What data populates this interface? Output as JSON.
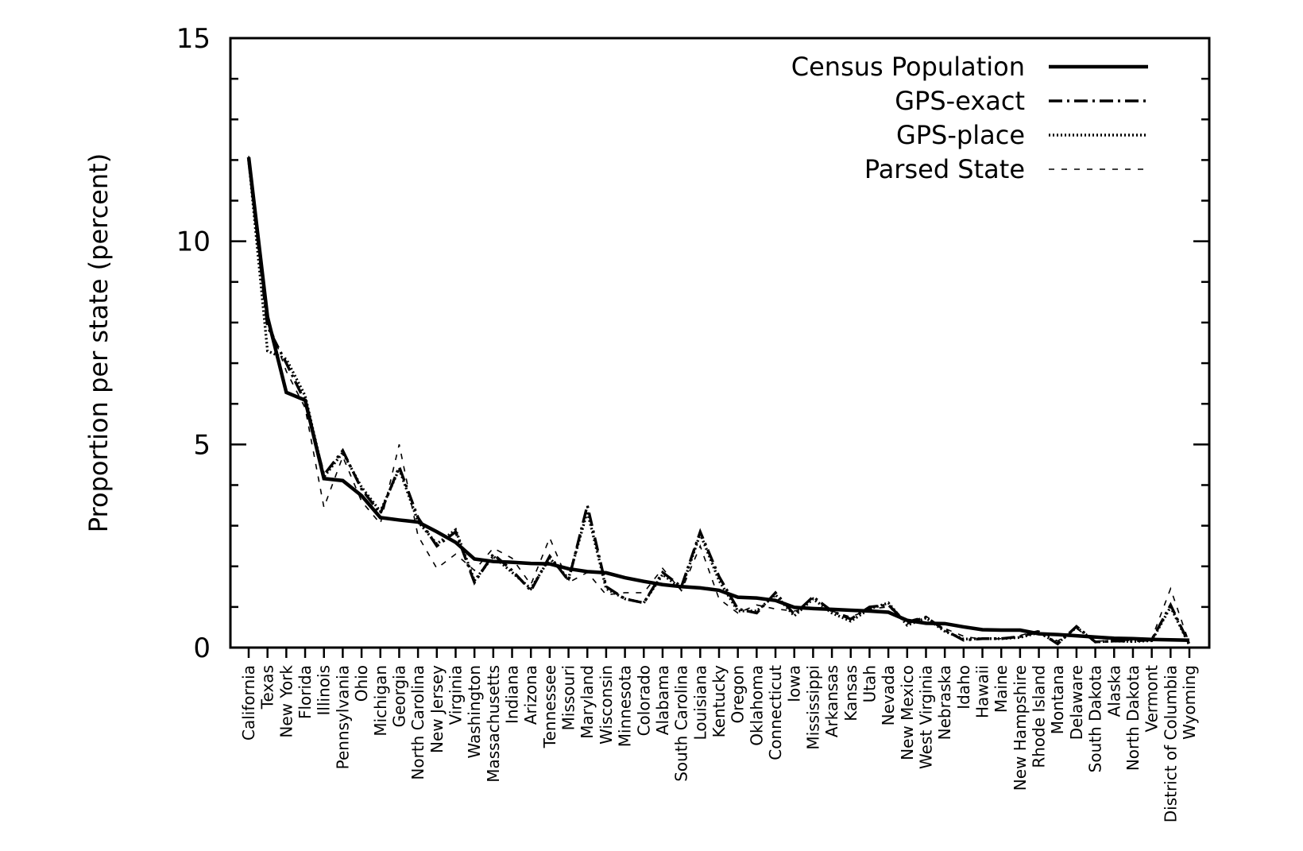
{
  "figure": {
    "background": "#ffffff",
    "line_color": "#000000",
    "ylabel": "Proportion per state (percent)",
    "y_tick_labels": [
      "0",
      "5",
      "10",
      "15"
    ]
  },
  "chart_data": {
    "type": "line",
    "title": "",
    "xlabel": "",
    "ylabel": "Proportion per state (percent)",
    "ylim": [
      0,
      15
    ],
    "y_major_ticks": [
      0,
      5,
      10,
      15
    ],
    "y_minor_tick_step": 1,
    "grid": false,
    "legend_position": "top-right-inside",
    "categories": [
      "California",
      "Texas",
      "New York",
      "Florida",
      "Illinois",
      "Pennsylvania",
      "Ohio",
      "Michigan",
      "Georgia",
      "North Carolina",
      "New Jersey",
      "Virginia",
      "Washington",
      "Massachusetts",
      "Indiana",
      "Arizona",
      "Tennessee",
      "Missouri",
      "Maryland",
      "Wisconsin",
      "Minnesota",
      "Colorado",
      "Alabama",
      "South Carolina",
      "Louisiana",
      "Kentucky",
      "Oregon",
      "Oklahoma",
      "Connecticut",
      "Iowa",
      "Mississippi",
      "Arkansas",
      "Kansas",
      "Utah",
      "Nevada",
      "New Mexico",
      "West Virginia",
      "Nebraska",
      "Idaho",
      "Hawaii",
      "Maine",
      "New Hampshire",
      "Rhode Island",
      "Montana",
      "Delaware",
      "South Dakota",
      "Alaska",
      "North Dakota",
      "Vermont",
      "District of Columbia",
      "Wyoming"
    ],
    "series": [
      {
        "name": "Census Population",
        "style": "solid",
        "color": "#000000",
        "values": [
          12.07,
          8.14,
          6.28,
          6.09,
          4.16,
          4.11,
          3.74,
          3.2,
          3.14,
          3.09,
          2.85,
          2.59,
          2.18,
          2.12,
          2.1,
          2.07,
          2.06,
          1.94,
          1.87,
          1.84,
          1.72,
          1.63,
          1.55,
          1.5,
          1.47,
          1.41,
          1.24,
          1.22,
          1.16,
          0.99,
          0.96,
          0.94,
          0.92,
          0.9,
          0.87,
          0.67,
          0.6,
          0.59,
          0.51,
          0.44,
          0.43,
          0.43,
          0.34,
          0.32,
          0.29,
          0.26,
          0.23,
          0.22,
          0.2,
          0.19,
          0.18
        ]
      },
      {
        "name": "GPS-exact",
        "style": "dash-dot",
        "color": "#000000",
        "values": [
          12.0,
          7.9,
          7.0,
          6.05,
          4.25,
          4.85,
          3.9,
          3.3,
          4.45,
          3.2,
          2.5,
          2.85,
          1.6,
          2.3,
          1.9,
          1.4,
          2.25,
          1.65,
          3.5,
          1.5,
          1.2,
          1.1,
          1.85,
          1.5,
          2.85,
          1.75,
          0.95,
          0.85,
          1.35,
          0.82,
          1.25,
          0.9,
          0.7,
          1.0,
          1.05,
          0.6,
          0.75,
          0.43,
          0.18,
          0.22,
          0.22,
          0.27,
          0.39,
          0.09,
          0.52,
          0.14,
          0.16,
          0.16,
          0.19,
          1.05,
          0.08
        ]
      },
      {
        "name": "GPS-place",
        "style": "dotted",
        "color": "#000000",
        "values": [
          12.0,
          7.3,
          7.1,
          6.2,
          4.2,
          4.8,
          3.95,
          3.35,
          4.4,
          3.1,
          2.55,
          2.9,
          1.65,
          2.25,
          1.85,
          1.45,
          2.2,
          1.7,
          3.35,
          1.45,
          1.2,
          1.1,
          1.8,
          1.45,
          2.8,
          1.65,
          0.9,
          0.9,
          1.3,
          0.78,
          1.2,
          0.85,
          0.65,
          0.95,
          1.1,
          0.55,
          0.73,
          0.4,
          0.21,
          0.22,
          0.22,
          0.25,
          0.37,
          0.11,
          0.5,
          0.14,
          0.16,
          0.15,
          0.17,
          1.0,
          0.06
        ]
      },
      {
        "name": "Parsed State",
        "style": "dashed",
        "color": "#000000",
        "values": [
          12.1,
          8.1,
          6.8,
          5.9,
          3.45,
          4.7,
          3.6,
          3.05,
          5.0,
          2.75,
          1.95,
          2.3,
          1.9,
          2.45,
          2.2,
          1.55,
          2.7,
          1.6,
          1.85,
          1.3,
          1.35,
          1.35,
          1.95,
          1.4,
          2.5,
          1.2,
          0.85,
          1.05,
          0.95,
          0.9,
          1.0,
          0.9,
          0.75,
          0.95,
          1.0,
          0.65,
          0.77,
          0.47,
          0.28,
          0.2,
          0.22,
          0.3,
          0.42,
          0.16,
          0.47,
          0.15,
          0.19,
          0.17,
          0.22,
          1.45,
          0.1
        ]
      }
    ]
  }
}
